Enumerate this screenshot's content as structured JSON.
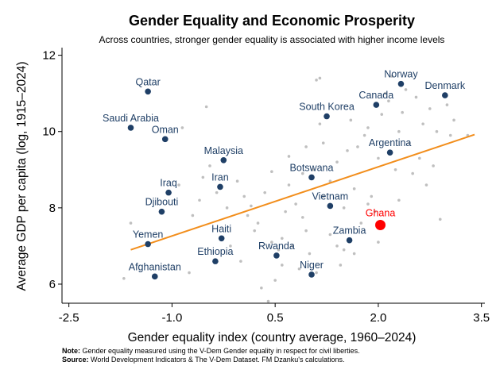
{
  "chart_data": {
    "type": "scatter",
    "title": "Gender Equality and Economic Prosperity",
    "subtitle": "Across countries, stronger gender equality is associated with higher income levels",
    "xlabel": "Gender equality index (country average, 1960–2024)",
    "ylabel": "Average GDP per capita (log, 1915–2024)",
    "xlim": [
      -2.6,
      3.55
    ],
    "ylim": [
      5.5,
      12.2
    ],
    "xticks": [
      -2.5,
      -1.0,
      0.5,
      2.0,
      3.5
    ],
    "xtick_labels": [
      "-2.5",
      "-1.0",
      "0.5",
      "2.0",
      "3.5"
    ],
    "yticks": [
      6,
      8,
      10,
      12
    ],
    "ytick_labels": [
      "6",
      "8",
      "10",
      "12"
    ],
    "grid": false,
    "legend": "none",
    "colors": {
      "labeled": "#1f3f66",
      "highlight": "#ff0000",
      "background_points": "#bfbfbf",
      "fit_line": "#f28e1c"
    },
    "fit_line": {
      "x": [
        -1.6,
        3.4
      ],
      "y": [
        6.9,
        9.92
      ]
    },
    "labeled_points": [
      {
        "country": "Qatar",
        "x": -1.35,
        "y": 11.05
      },
      {
        "country": "Saudi Arabia",
        "x": -1.6,
        "y": 10.1
      },
      {
        "country": "Oman",
        "x": -1.1,
        "y": 9.8
      },
      {
        "country": "Malaysia",
        "x": -0.25,
        "y": 9.25
      },
      {
        "country": "Iraq",
        "x": -1.05,
        "y": 8.4
      },
      {
        "country": "Iran",
        "x": -0.3,
        "y": 8.55
      },
      {
        "country": "Djibouti",
        "x": -1.15,
        "y": 7.9
      },
      {
        "country": "Haiti",
        "x": -0.28,
        "y": 7.2
      },
      {
        "country": "Yemen",
        "x": -1.35,
        "y": 7.05
      },
      {
        "country": "Ethiopia",
        "x": -0.37,
        "y": 6.6
      },
      {
        "country": "Afghanistan",
        "x": -1.25,
        "y": 6.2
      },
      {
        "country": "South Korea",
        "x": 1.25,
        "y": 10.4
      },
      {
        "country": "Botswana",
        "x": 1.03,
        "y": 8.8
      },
      {
        "country": "Vietnam",
        "x": 1.3,
        "y": 8.05
      },
      {
        "country": "Rwanda",
        "x": 0.52,
        "y": 6.75
      },
      {
        "country": "Niger",
        "x": 1.03,
        "y": 6.25
      },
      {
        "country": "Zambia",
        "x": 1.58,
        "y": 7.15
      },
      {
        "country": "Canada",
        "x": 1.97,
        "y": 10.7
      },
      {
        "country": "Norway",
        "x": 2.33,
        "y": 11.25
      },
      {
        "country": "Denmark",
        "x": 2.97,
        "y": 10.95
      },
      {
        "country": "Argentina",
        "x": 2.17,
        "y": 9.45
      }
    ],
    "highlight_point": {
      "country": "Ghana",
      "x": 2.03,
      "y": 7.55
    },
    "background_points": [
      [
        -1.7,
        6.15
      ],
      [
        -1.6,
        7.6
      ],
      [
        -0.75,
        6.3
      ],
      [
        -0.5,
        10.65
      ],
      [
        -0.85,
        10.1
      ],
      [
        -0.15,
        7.0
      ],
      [
        0.2,
        7.4
      ],
      [
        0.3,
        5.9
      ],
      [
        0.4,
        5.55
      ],
      [
        0.5,
        6.1
      ],
      [
        0.55,
        6.9
      ],
      [
        0.6,
        7.2
      ],
      [
        0.65,
        7.9
      ],
      [
        0.7,
        8.6
      ],
      [
        0.8,
        8.1
      ],
      [
        0.9,
        8.9
      ],
      [
        0.95,
        7.4
      ],
      [
        1.0,
        6.8
      ],
      [
        1.05,
        9.0
      ],
      [
        1.1,
        11.35
      ],
      [
        1.15,
        10.2
      ],
      [
        1.2,
        9.7
      ],
      [
        1.3,
        8.7
      ],
      [
        1.4,
        9.2
      ],
      [
        1.45,
        6.5
      ],
      [
        1.5,
        6.9
      ],
      [
        1.55,
        9.5
      ],
      [
        1.6,
        10.3
      ],
      [
        1.65,
        8.5
      ],
      [
        1.7,
        9.6
      ],
      [
        1.75,
        7.6
      ],
      [
        1.8,
        9.9
      ],
      [
        1.85,
        10.1
      ],
      [
        1.9,
        8.3
      ],
      [
        1.95,
        7.9
      ],
      [
        2.0,
        9.3
      ],
      [
        2.05,
        10.45
      ],
      [
        2.1,
        11.0
      ],
      [
        2.15,
        10.8
      ],
      [
        2.2,
        11.45
      ],
      [
        2.25,
        9.0
      ],
      [
        2.3,
        10.0
      ],
      [
        2.35,
        10.5
      ],
      [
        2.4,
        11.1
      ],
      [
        2.45,
        9.7
      ],
      [
        2.5,
        8.9
      ],
      [
        2.55,
        10.9
      ],
      [
        2.6,
        9.3
      ],
      [
        2.65,
        10.2
      ],
      [
        2.7,
        8.6
      ],
      [
        2.75,
        10.6
      ],
      [
        2.8,
        9.1
      ],
      [
        2.85,
        10.0
      ],
      [
        2.9,
        7.7
      ],
      [
        3.0,
        10.7
      ],
      [
        3.05,
        9.9
      ],
      [
        3.1,
        10.3
      ],
      [
        3.3,
        9.9
      ],
      [
        -0.55,
        8.8
      ],
      [
        -0.45,
        9.1
      ],
      [
        -0.35,
        8.4
      ],
      [
        -0.2,
        8.0
      ],
      [
        -0.05,
        8.7
      ],
      [
        0.05,
        8.3
      ],
      [
        0.1,
        7.8
      ],
      [
        0.15,
        8.05
      ],
      [
        0.25,
        7.6
      ],
      [
        0.35,
        8.4
      ],
      [
        0.45,
        7.1
      ],
      [
        0.6,
        6.5
      ],
      [
        0.75,
        7.0
      ],
      [
        0.85,
        6.4
      ],
      [
        0.95,
        9.6
      ],
      [
        1.2,
        8.3
      ],
      [
        1.3,
        7.3
      ],
      [
        1.4,
        7.0
      ],
      [
        1.1,
        6.3
      ],
      [
        0.7,
        9.35
      ],
      [
        -0.7,
        7.8
      ],
      [
        -0.9,
        8.6
      ],
      [
        0.0,
        6.6
      ],
      [
        -0.6,
        8.2
      ],
      [
        1.85,
        8.1
      ],
      [
        2.0,
        7.1
      ],
      [
        1.65,
        6.8
      ],
      [
        2.3,
        8.2
      ],
      [
        0.45,
        8.95
      ],
      [
        1.15,
        11.4
      ],
      [
        1.5,
        8.0
      ],
      [
        0.9,
        7.75
      ]
    ]
  }
}
